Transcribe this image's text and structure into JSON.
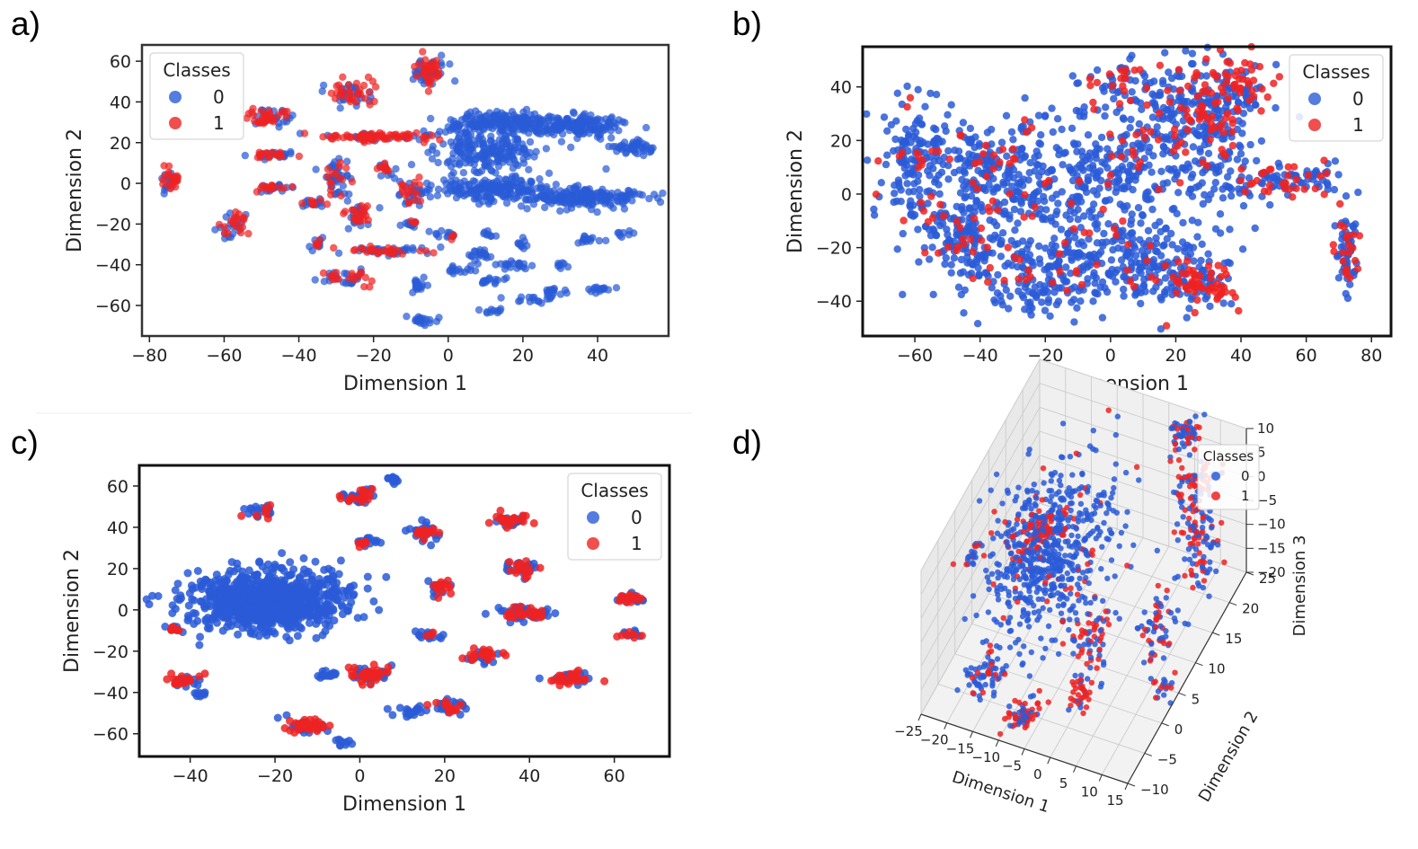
{
  "panel_labels": [
    "a)",
    "b)",
    "c)",
    "d)"
  ],
  "colors": {
    "class0": "#2a5bd7",
    "class1": "#ee2222",
    "axes": "#222222",
    "pane": "#f0f0f0",
    "grid": "#cccccc"
  },
  "chart_data": [
    {
      "panel": "a)",
      "type": "scatter",
      "xlabel": "Dimension 1",
      "ylabel": "Dimension 2",
      "xlim": [
        -82,
        59
      ],
      "ylim": [
        -75,
        68
      ],
      "xticks": [
        -80,
        -60,
        -40,
        -20,
        0,
        20,
        40
      ],
      "xtick_labels": [
        "−80",
        "−60",
        "−40",
        "−20",
        "0",
        "20",
        "40"
      ],
      "yticks": [
        -60,
        -40,
        -20,
        0,
        20,
        40,
        60
      ],
      "ytick_labels": [
        "−60",
        "−40",
        "−20",
        "0",
        "20",
        "40",
        "60"
      ],
      "legend": {
        "title": "Classes",
        "entries": [
          "0",
          "1"
        ],
        "position": "top-left"
      },
      "clusters": [
        {
          "x": 15,
          "y": 30,
          "sx": 8,
          "sy": 2.5,
          "n": 200,
          "frac1": 0
        },
        {
          "x": 35,
          "y": 28,
          "sx": 7,
          "sy": 2.5,
          "n": 160,
          "frac1": 0
        },
        {
          "x": 50,
          "y": 18,
          "sx": 3,
          "sy": 1.5,
          "n": 50,
          "frac1": 0
        },
        {
          "x": 10,
          "y": 15,
          "sx": 7,
          "sy": 5,
          "n": 200,
          "frac1": 0
        },
        {
          "x": 12,
          "y": -3,
          "sx": 7,
          "sy": 3,
          "n": 180,
          "frac1": 0
        },
        {
          "x": 35,
          "y": -7,
          "sx": 9,
          "sy": 2.5,
          "n": 200,
          "frac1": 0
        },
        {
          "x": -74,
          "y": 2,
          "sx": 1,
          "sy": 3,
          "n": 40,
          "frac1": 0.5
        },
        {
          "x": -48,
          "y": 32,
          "sx": 3,
          "sy": 2,
          "n": 60,
          "frac1": 0.6
        },
        {
          "x": -26,
          "y": 44,
          "sx": 3,
          "sy": 3,
          "n": 60,
          "frac1": 0.5
        },
        {
          "x": -5,
          "y": 54,
          "sx": 2,
          "sy": 4,
          "n": 80,
          "frac1": 0.5
        },
        {
          "x": -20,
          "y": 23,
          "sx": 7,
          "sy": 1,
          "n": 100,
          "frac1": 0.7
        },
        {
          "x": -47,
          "y": 14,
          "sx": 3,
          "sy": 1,
          "n": 40,
          "frac1": 0.6
        },
        {
          "x": -30,
          "y": 3,
          "sx": 2,
          "sy": 4,
          "n": 50,
          "frac1": 0.3
        },
        {
          "x": -17,
          "y": 7,
          "sx": 1,
          "sy": 2,
          "n": 20,
          "frac1": 0.5
        },
        {
          "x": -10,
          "y": -5,
          "sx": 2,
          "sy": 3,
          "n": 40,
          "frac1": 0.4
        },
        {
          "x": -47,
          "y": -2,
          "sx": 3,
          "sy": 1,
          "n": 30,
          "frac1": 0.4
        },
        {
          "x": -36,
          "y": -10,
          "sx": 2,
          "sy": 1,
          "n": 25,
          "frac1": 0.4
        },
        {
          "x": -24,
          "y": -15,
          "sx": 2,
          "sy": 3,
          "n": 40,
          "frac1": 0.5
        },
        {
          "x": -57,
          "y": -20,
          "sx": 2,
          "sy": 3,
          "n": 40,
          "frac1": 0.5
        },
        {
          "x": -17,
          "y": -33,
          "sx": 6,
          "sy": 1,
          "n": 60,
          "frac1": 0.5
        },
        {
          "x": -28,
          "y": -47,
          "sx": 3,
          "sy": 2,
          "n": 40,
          "frac1": 0.4
        },
        {
          "x": -8,
          "y": -50,
          "sx": 1,
          "sy": 2,
          "n": 20,
          "frac1": 0
        },
        {
          "x": -7,
          "y": -67,
          "sx": 2,
          "sy": 1,
          "n": 20,
          "frac1": 0
        },
        {
          "x": -10,
          "y": -20,
          "sx": 1.5,
          "sy": 1,
          "n": 15,
          "frac1": 0.3
        },
        {
          "x": -35,
          "y": -30,
          "sx": 1,
          "sy": 2,
          "n": 15,
          "frac1": 0.3
        },
        {
          "x": -1,
          "y": -25,
          "sx": 2,
          "sy": 1,
          "n": 15,
          "frac1": 0.2
        },
        {
          "x": 18,
          "y": -40,
          "sx": 3,
          "sy": 1,
          "n": 20,
          "frac1": 0
        },
        {
          "x": 8,
          "y": -35,
          "sx": 2,
          "sy": 2,
          "n": 20,
          "frac1": 0
        },
        {
          "x": 3,
          "y": -43,
          "sx": 2,
          "sy": 1,
          "n": 15,
          "frac1": 0
        },
        {
          "x": 12,
          "y": -48,
          "sx": 2,
          "sy": 1,
          "n": 15,
          "frac1": 0
        },
        {
          "x": 22,
          "y": -57,
          "sx": 3,
          "sy": 1,
          "n": 15,
          "frac1": 0
        },
        {
          "x": 12,
          "y": -62,
          "sx": 2,
          "sy": 1,
          "n": 10,
          "frac1": 0
        },
        {
          "x": 28,
          "y": -53,
          "sx": 2,
          "sy": 1,
          "n": 15,
          "frac1": 0
        },
        {
          "x": 41,
          "y": -52,
          "sx": 2,
          "sy": 1,
          "n": 15,
          "frac1": 0
        },
        {
          "x": 38,
          "y": -28,
          "sx": 2,
          "sy": 1,
          "n": 15,
          "frac1": 0
        },
        {
          "x": 47,
          "y": -25,
          "sx": 1,
          "sy": 1,
          "n": 8,
          "frac1": 0
        },
        {
          "x": 20,
          "y": -30,
          "sx": 1,
          "sy": 2,
          "n": 10,
          "frac1": 0
        },
        {
          "x": 10,
          "y": -25,
          "sx": 1,
          "sy": 1,
          "n": 8,
          "frac1": 0
        },
        {
          "x": 30,
          "y": -40,
          "sx": 1,
          "sy": 1,
          "n": 8,
          "frac1": 0
        }
      ]
    },
    {
      "panel": "b)",
      "type": "scatter",
      "xlabel": "Dimension 1",
      "ylabel": "Dimension 2",
      "xlim": [
        -76,
        86
      ],
      "ylim": [
        -53,
        55
      ],
      "xticks": [
        -60,
        -40,
        -20,
        0,
        20,
        40,
        60,
        80
      ],
      "xtick_labels": [
        "−60",
        "−40",
        "−20",
        "0",
        "20",
        "40",
        "60",
        "80"
      ],
      "yticks": [
        -40,
        -20,
        0,
        20,
        40
      ],
      "ytick_labels": [
        "−40",
        "−20",
        "0",
        "20",
        "40"
      ],
      "legend": {
        "title": "Classes",
        "entries": [
          "0",
          "1"
        ],
        "position": "top-right"
      },
      "clusters": [
        {
          "x": -60,
          "y": 10,
          "sx": 5,
          "sy": 12,
          "n": 150,
          "frac1": 0.12
        },
        {
          "x": -45,
          "y": -15,
          "sx": 7,
          "sy": 10,
          "n": 150,
          "frac1": 0.12
        },
        {
          "x": -20,
          "y": -30,
          "sx": 12,
          "sy": 8,
          "n": 200,
          "frac1": 0.1
        },
        {
          "x": 10,
          "y": -25,
          "sx": 12,
          "sy": 8,
          "n": 200,
          "frac1": 0.08
        },
        {
          "x": 28,
          "y": -35,
          "sx": 6,
          "sy": 5,
          "n": 90,
          "frac1": 0.5
        },
        {
          "x": -25,
          "y": 5,
          "sx": 14,
          "sy": 12,
          "n": 250,
          "frac1": 0.1
        },
        {
          "x": 5,
          "y": 10,
          "sx": 12,
          "sy": 12,
          "n": 200,
          "frac1": 0.1
        },
        {
          "x": 25,
          "y": 35,
          "sx": 10,
          "sy": 8,
          "n": 150,
          "frac1": 0.3
        },
        {
          "x": 38,
          "y": 40,
          "sx": 6,
          "sy": 6,
          "n": 80,
          "frac1": 0.4
        },
        {
          "x": 5,
          "y": 40,
          "sx": 6,
          "sy": 4,
          "n": 50,
          "frac1": 0.4
        },
        {
          "x": 55,
          "y": 5,
          "sx": 8,
          "sy": 3,
          "n": 90,
          "frac1": 0.3
        },
        {
          "x": 73,
          "y": -20,
          "sx": 2,
          "sy": 8,
          "n": 70,
          "frac1": 0.3
        },
        {
          "x": 30,
          "y": 10,
          "sx": 8,
          "sy": 8,
          "n": 90,
          "frac1": 0.15
        },
        {
          "x": -40,
          "y": 15,
          "sx": 8,
          "sy": 6,
          "n": 90,
          "frac1": 0.15
        },
        {
          "x": 30,
          "y": 25,
          "sx": 5,
          "sy": 4,
          "n": 50,
          "frac1": 0.3
        }
      ]
    },
    {
      "panel": "c)",
      "type": "scatter",
      "xlabel": "Dimension 1",
      "ylabel": "Dimension 2",
      "xlim": [
        -52,
        73
      ],
      "ylim": [
        -71,
        70
      ],
      "xticks": [
        -40,
        -20,
        0,
        20,
        40,
        60
      ],
      "xtick_labels": [
        "−40",
        "−20",
        "0",
        "20",
        "40",
        "60"
      ],
      "yticks": [
        -60,
        -40,
        -20,
        0,
        20,
        40,
        60
      ],
      "ytick_labels": [
        "−60",
        "−40",
        "−20",
        "0",
        "20",
        "40",
        "60"
      ],
      "legend": {
        "title": "Classes",
        "entries": [
          "0",
          "1"
        ],
        "position": "top-right"
      },
      "clusters": [
        {
          "x": -21,
          "y": 4,
          "sx": 9,
          "sy": 7,
          "n": 900,
          "frac1": 0
        },
        {
          "x": -44,
          "y": -9,
          "sx": 1,
          "sy": 1,
          "n": 15,
          "frac1": 0.5
        },
        {
          "x": -23,
          "y": 47,
          "sx": 2,
          "sy": 2,
          "n": 25,
          "frac1": 0.4
        },
        {
          "x": 0,
          "y": 55,
          "sx": 2,
          "sy": 2,
          "n": 40,
          "frac1": 0.5
        },
        {
          "x": 8,
          "y": 63,
          "sx": 1,
          "sy": 1,
          "n": 15,
          "frac1": 0
        },
        {
          "x": 1,
          "y": 33,
          "sx": 1.5,
          "sy": 1.5,
          "n": 20,
          "frac1": 0.3
        },
        {
          "x": 15,
          "y": 38,
          "sx": 2,
          "sy": 2,
          "n": 40,
          "frac1": 0.4
        },
        {
          "x": 35,
          "y": 43,
          "sx": 2,
          "sy": 1.5,
          "n": 40,
          "frac1": 0.5
        },
        {
          "x": 38,
          "y": 20,
          "sx": 2,
          "sy": 2,
          "n": 40,
          "frac1": 0.5
        },
        {
          "x": 19,
          "y": 11,
          "sx": 1.5,
          "sy": 2,
          "n": 30,
          "frac1": 0.4
        },
        {
          "x": 39,
          "y": -2,
          "sx": 3,
          "sy": 2,
          "n": 60,
          "frac1": 0.4
        },
        {
          "x": 64,
          "y": 6,
          "sx": 2,
          "sy": 1.5,
          "n": 30,
          "frac1": 0.5
        },
        {
          "x": 64,
          "y": -12,
          "sx": 1.5,
          "sy": 1,
          "n": 15,
          "frac1": 0.4
        },
        {
          "x": 16,
          "y": -12,
          "sx": 1.5,
          "sy": 1,
          "n": 20,
          "frac1": 0.3
        },
        {
          "x": 29,
          "y": -22,
          "sx": 2,
          "sy": 1.5,
          "n": 40,
          "frac1": 0.5
        },
        {
          "x": 2,
          "y": -31,
          "sx": 2.5,
          "sy": 2,
          "n": 60,
          "frac1": 0.6
        },
        {
          "x": -41,
          "y": -34,
          "sx": 2,
          "sy": 2,
          "n": 30,
          "frac1": 0.5
        },
        {
          "x": 49,
          "y": -33,
          "sx": 2.5,
          "sy": 2,
          "n": 40,
          "frac1": 0.5
        },
        {
          "x": -12,
          "y": -56,
          "sx": 2.5,
          "sy": 2,
          "n": 60,
          "frac1": 0.6
        },
        {
          "x": -4,
          "y": -64,
          "sx": 1,
          "sy": 0.8,
          "n": 10,
          "frac1": 0
        },
        {
          "x": 12,
          "y": -49,
          "sx": 2,
          "sy": 1,
          "n": 20,
          "frac1": 0
        },
        {
          "x": 21,
          "y": -47,
          "sx": 2,
          "sy": 1.5,
          "n": 30,
          "frac1": 0.2
        },
        {
          "x": -8,
          "y": -31,
          "sx": 1.5,
          "sy": 1,
          "n": 15,
          "frac1": 0
        },
        {
          "x": -38,
          "y": -41,
          "sx": 1,
          "sy": 1,
          "n": 10,
          "frac1": 0
        }
      ]
    },
    {
      "panel": "d)",
      "type": "scatter3d",
      "xlabel": "Dimension 1",
      "ylabel": "Dimension 2",
      "zlabel": "Dimension 3",
      "xticks": [
        -25,
        -20,
        -15,
        -10,
        -5,
        0,
        5,
        10,
        15
      ],
      "xtick_labels": [
        "−25",
        "−20",
        "−15",
        "−10",
        "−5",
        "0",
        "5",
        "10",
        "15"
      ],
      "yticks": [
        -10,
        -5,
        0,
        5,
        10,
        15,
        20,
        25
      ],
      "ytick_labels": [
        "−10",
        "−5",
        "0",
        "5",
        "10",
        "15",
        "20",
        "25"
      ],
      "zticks": [
        -20,
        -15,
        -10,
        -5,
        0,
        5,
        10
      ],
      "ztick_labels": [
        "−20",
        "−15",
        "−10",
        "−5",
        "0",
        "5",
        "10"
      ],
      "legend": {
        "title": "Classes",
        "entries": [
          "0",
          "1"
        ],
        "position": "top-right"
      },
      "clusters": [
        {
          "x": -10,
          "y": 5,
          "z": 0,
          "sx": 5,
          "sy": 6,
          "sz": 6,
          "n": 600,
          "frac1": 0.08
        },
        {
          "x": -12,
          "y": 3,
          "z": 6,
          "sx": 2.5,
          "sy": 2.5,
          "sz": 2,
          "n": 80,
          "frac1": 0.6
        },
        {
          "x": 5,
          "y": 22,
          "z": 9,
          "sx": 1.5,
          "sy": 1.5,
          "sz": 1.5,
          "n": 60,
          "frac1": 0.5
        },
        {
          "x": 8,
          "y": 20,
          "z": 2,
          "sx": 2,
          "sy": 2,
          "sz": 2,
          "n": 70,
          "frac1": 0.5
        },
        {
          "x": 10,
          "y": 18,
          "z": -4,
          "sx": 1.5,
          "sy": 1.5,
          "sz": 1.5,
          "n": 50,
          "frac1": 0.4
        },
        {
          "x": 12,
          "y": 16,
          "z": -9,
          "sx": 1.5,
          "sy": 1.5,
          "sz": 1.5,
          "n": 40,
          "frac1": 0.4
        },
        {
          "x": 8,
          "y": 10,
          "z": -15,
          "sx": 2,
          "sy": 2,
          "sz": 2,
          "n": 60,
          "frac1": 0.4
        },
        {
          "x": -25,
          "y": 5,
          "z": -5,
          "sx": 1,
          "sy": 1,
          "sz": 1,
          "n": 20,
          "frac1": 0.5
        },
        {
          "x": -14,
          "y": -6,
          "z": -12,
          "sx": 1.5,
          "sy": 1.5,
          "sz": 2,
          "n": 40,
          "frac1": 0.3
        },
        {
          "x": -2,
          "y": 5,
          "z": -14,
          "sx": 1.5,
          "sy": 1.5,
          "sz": 3,
          "n": 60,
          "frac1": 0.6
        },
        {
          "x": 0,
          "y": 0,
          "z": -19,
          "sx": 1.5,
          "sy": 1.5,
          "sz": 1.5,
          "n": 40,
          "frac1": 0.6
        },
        {
          "x": -8,
          "y": -6,
          "z": -20,
          "sx": 1.5,
          "sy": 1.5,
          "sz": 1.5,
          "n": 60,
          "frac1": 0.6
        },
        {
          "x": -18,
          "y": -5,
          "z": -17,
          "sx": 1,
          "sy": 1,
          "sz": 1,
          "n": 20,
          "frac1": 0
        },
        {
          "x": 12,
          "y": 5,
          "z": -20,
          "sx": 1,
          "sy": 1,
          "sz": 1,
          "n": 20,
          "frac1": 0.5
        }
      ]
    }
  ]
}
